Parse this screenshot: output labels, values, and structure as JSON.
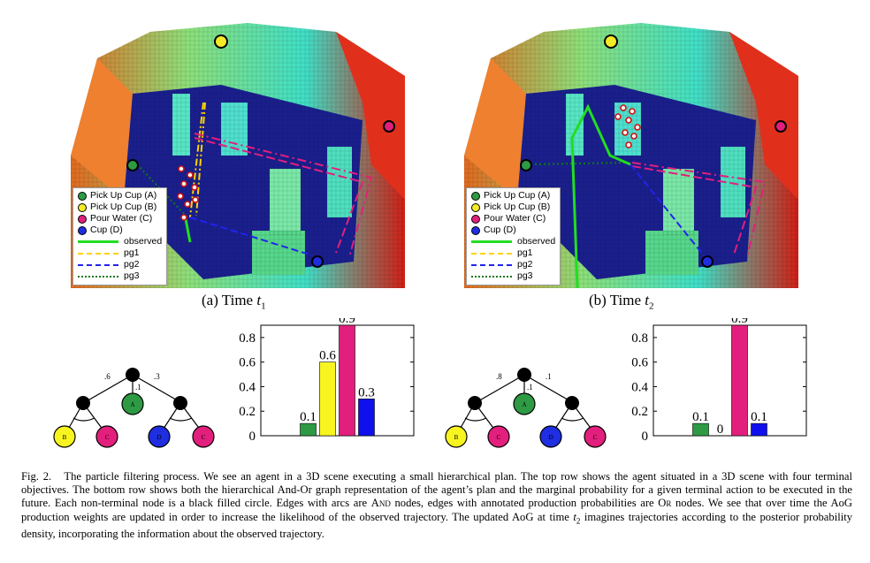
{
  "panels": [
    {
      "subcaption_prefix": "(a) Time ",
      "subcaption_var": "t",
      "subcaption_sub": "1",
      "legend": [
        {
          "label": "Pick Up Cup (A)",
          "color": "#2e9a44"
        },
        {
          "label": "Pick Up Cup (B)",
          "color": "#f4ea28"
        },
        {
          "label": "Pour Water (C)",
          "color": "#e21f7c"
        },
        {
          "label": "Cup (D)",
          "color": "#1e2ee0"
        },
        {
          "label": "observed",
          "color": "#22dd22",
          "style": "solid"
        },
        {
          "label": "pg1",
          "color": "#ffd200",
          "style": "dashdot"
        },
        {
          "label": "pg2",
          "color": "#2222ee",
          "style": "dashed"
        },
        {
          "label": "pg3",
          "color": "#117a11",
          "style": "dotted"
        }
      ],
      "tree_weights": [
        ".6",
        ".1",
        ".3"
      ],
      "tree_nodes": {
        "a": "A",
        "b": "B",
        "c1": "C",
        "d": "D",
        "c2": "C"
      }
    },
    {
      "subcaption_prefix": "(b) Time ",
      "subcaption_var": "t",
      "subcaption_sub": "2",
      "legend": [
        {
          "label": "Pick Up Cup (A)",
          "color": "#2e9a44"
        },
        {
          "label": "Pick Up Cup (B)",
          "color": "#f4ea28"
        },
        {
          "label": "Pour Water (C)",
          "color": "#e21f7c"
        },
        {
          "label": "Cup (D)",
          "color": "#1e2ee0"
        },
        {
          "label": "observed",
          "color": "#22dd22",
          "style": "solid"
        },
        {
          "label": "pg1",
          "color": "#ffd200",
          "style": "dashdot"
        },
        {
          "label": "pg2",
          "color": "#2222ee",
          "style": "dashed"
        },
        {
          "label": "pg3",
          "color": "#117a11",
          "style": "dotted"
        }
      ],
      "tree_weights": [
        ".8",
        ".1",
        ".1"
      ],
      "tree_nodes": {
        "a": "A",
        "b": "B",
        "c1": "C",
        "d": "D",
        "c2": "C"
      }
    }
  ],
  "chart_data": [
    {
      "type": "bar",
      "categories": [
        "A",
        "B",
        "C",
        "D"
      ],
      "values": [
        0.1,
        0.6,
        0.9,
        0.3
      ],
      "value_labels": [
        "0.1",
        "0.6",
        "0.9",
        "0.3"
      ],
      "colors": [
        "#2e9a44",
        "#f8f420",
        "#e21f7c",
        "#1010ee"
      ],
      "ylim": [
        0,
        0.9
      ],
      "yticks": [
        "0",
        "0.2",
        "0.4",
        "0.6",
        "0.8"
      ],
      "title": "",
      "xlabel": "",
      "ylabel": ""
    },
    {
      "type": "bar",
      "categories": [
        "A",
        "B",
        "C",
        "D"
      ],
      "values": [
        0.1,
        0,
        0.9,
        0.1
      ],
      "value_labels": [
        "0.1",
        "0",
        "0.9",
        "0.1"
      ],
      "colors": [
        "#2e9a44",
        "#f8f420",
        "#e21f7c",
        "#1010ee"
      ],
      "ylim": [
        0,
        0.9
      ],
      "yticks": [
        "0",
        "0.2",
        "0.4",
        "0.6",
        "0.8"
      ],
      "title": "",
      "xlabel": "",
      "ylabel": ""
    }
  ],
  "caption": {
    "label": "Fig. 2.",
    "s1": "The particle filtering process. We see an agent in a 3D scene executing a small hierarchical plan. The top row shows the agent situated in a 3D scene with four terminal objectives. The bottom row shows both the hierarchical And-Or graph representation of the agent’s plan and the marginal probability for a given terminal action to be executed in the future. Each non-terminal node is a black filled circle. Edges with arcs are ",
    "and_word": "And",
    "s2": " nodes, edges with annotated production probabilities are ",
    "or_word": "Or",
    "s3": " nodes. We see that over time the AoG production weights are updated in order to increase the likelihood of the observed trajectory. The updated AoG at time ",
    "t_var": "t",
    "t_sub": "2",
    "s4": " imagines trajectories according to the posterior probability density, incorporating the information about the observed trajectory."
  }
}
